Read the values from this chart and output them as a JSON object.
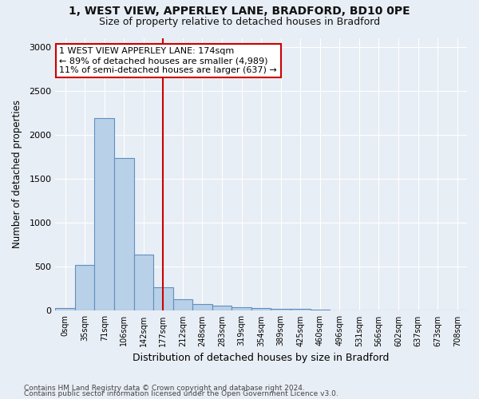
{
  "title1": "1, WEST VIEW, APPERLEY LANE, BRADFORD, BD10 0PE",
  "title2": "Size of property relative to detached houses in Bradford",
  "xlabel": "Distribution of detached houses by size in Bradford",
  "ylabel": "Number of detached properties",
  "categories": [
    "0sqm",
    "35sqm",
    "71sqm",
    "106sqm",
    "142sqm",
    "177sqm",
    "212sqm",
    "248sqm",
    "283sqm",
    "319sqm",
    "354sqm",
    "389sqm",
    "425sqm",
    "460sqm",
    "496sqm",
    "531sqm",
    "566sqm",
    "602sqm",
    "637sqm",
    "673sqm",
    "708sqm"
  ],
  "bar_heights": [
    30,
    520,
    2190,
    1740,
    640,
    265,
    135,
    80,
    55,
    38,
    32,
    25,
    18,
    12,
    8,
    4,
    2,
    1,
    1,
    1,
    1
  ],
  "bar_color": "#b8d0e8",
  "bar_edge_color": "#6090c0",
  "vline_bar_index": 5,
  "annotation_text": "1 WEST VIEW APPERLEY LANE: 174sqm\n← 89% of detached houses are smaller (4,989)\n11% of semi-detached houses are larger (637) →",
  "annotation_box_color": "#ffffff",
  "annotation_box_edge_color": "#cc0000",
  "vline_color": "#cc0000",
  "ylim": [
    0,
    3100
  ],
  "yticks": [
    0,
    500,
    1000,
    1500,
    2000,
    2500,
    3000
  ],
  "footer1": "Contains HM Land Registry data © Crown copyright and database right 2024.",
  "footer2": "Contains public sector information licensed under the Open Government Licence v3.0.",
  "bg_color": "#e8eef5",
  "grid_color": "#ffffff"
}
